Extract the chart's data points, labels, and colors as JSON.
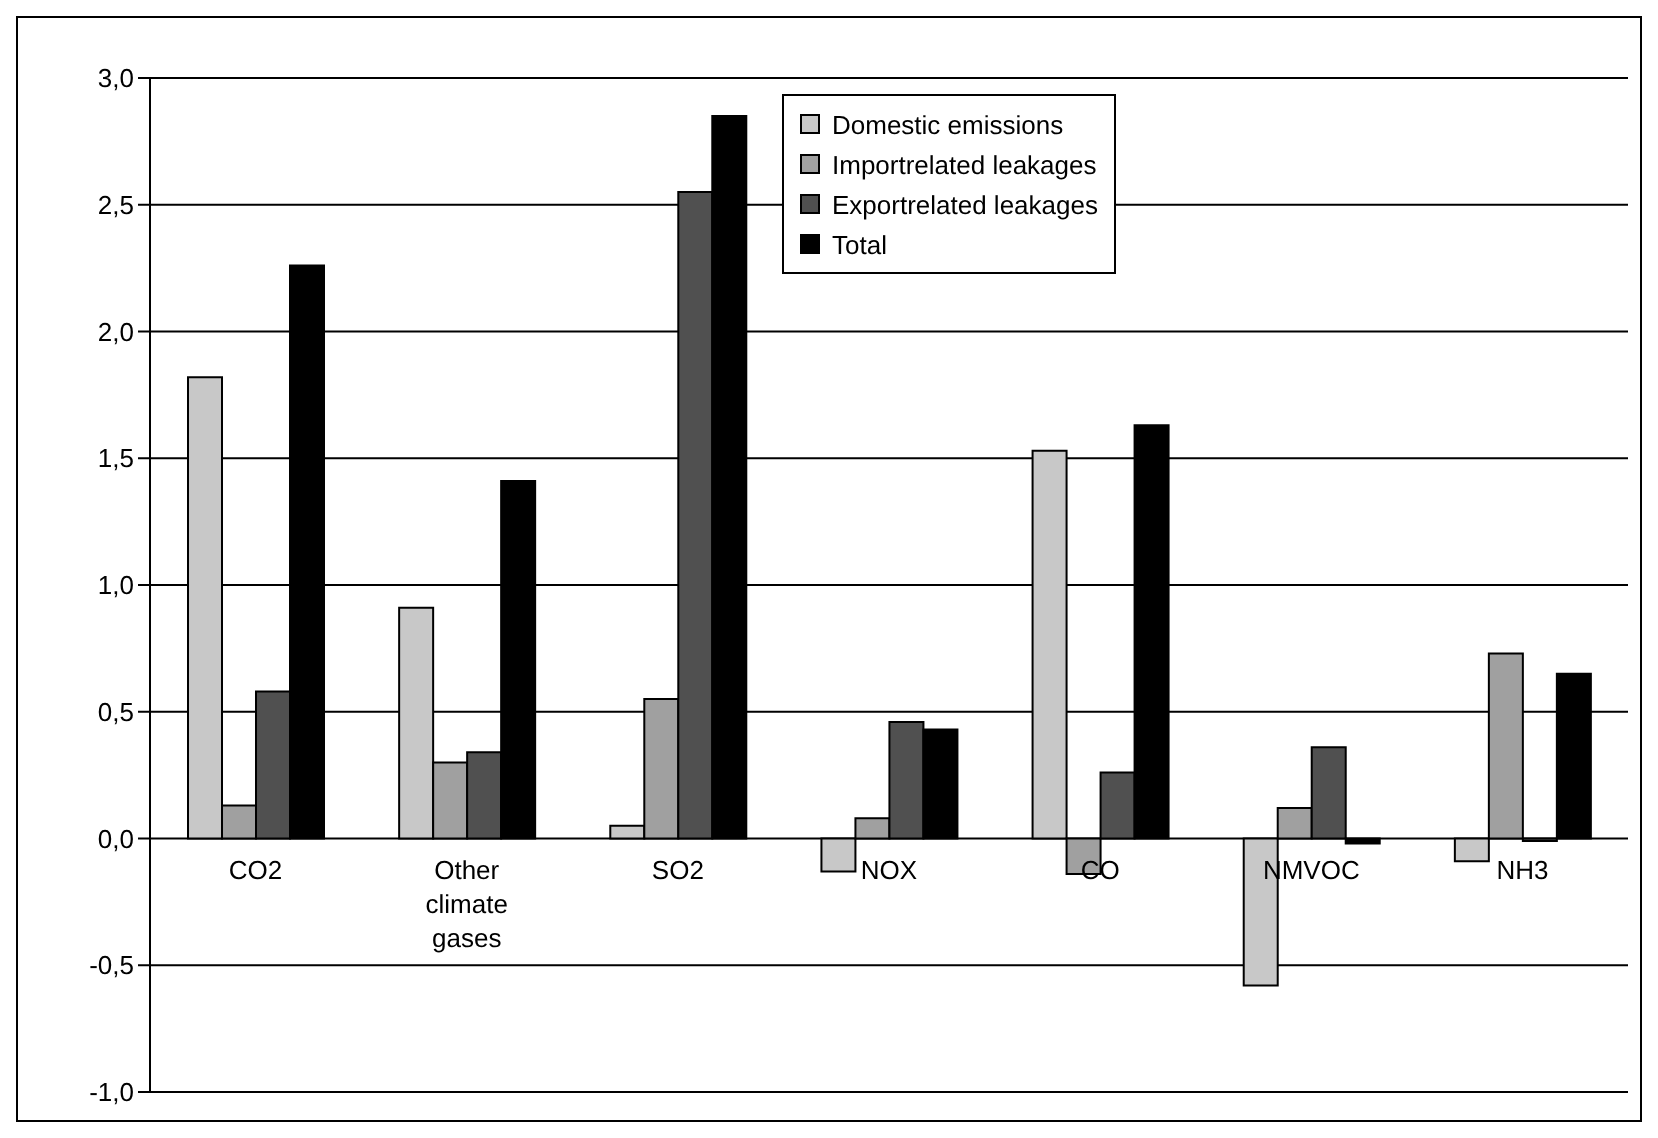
{
  "chart_data": {
    "type": "bar",
    "categories": [
      "CO2",
      "Other climate gases",
      "SO2",
      "NOX",
      "CO",
      "NMVOC",
      "NH3"
    ],
    "series": [
      {
        "name": "Domestic emissions",
        "color": "#c8c8c8",
        "values": [
          1.82,
          0.91,
          0.05,
          -0.13,
          1.53,
          -0.58,
          -0.09
        ]
      },
      {
        "name": "Importrelated leakages",
        "color": "#a0a0a0",
        "values": [
          0.13,
          0.3,
          0.55,
          0.08,
          -0.14,
          0.12,
          0.73
        ]
      },
      {
        "name": "Exportrelated leakages",
        "color": "#505050",
        "values": [
          0.58,
          0.34,
          2.55,
          0.46,
          0.26,
          0.36,
          -0.01
        ]
      },
      {
        "name": "Total",
        "color": "#000000",
        "values": [
          2.26,
          1.41,
          2.85,
          0.43,
          1.63,
          -0.02,
          0.65
        ]
      }
    ],
    "ylim": [
      -1,
      3
    ],
    "yticks": [
      {
        "value": -1,
        "label": "-1,0"
      },
      {
        "value": -0.5,
        "label": "-0,5"
      },
      {
        "value": 0,
        "label": "0,0"
      },
      {
        "value": 0.5,
        "label": "0,5"
      },
      {
        "value": 1,
        "label": "1,0"
      },
      {
        "value": 1.5,
        "label": "1,5"
      },
      {
        "value": 2,
        "label": "2,0"
      },
      {
        "value": 2.5,
        "label": "2,5"
      },
      {
        "value": 3,
        "label": "3,0"
      }
    ],
    "grid": "y",
    "legend": "top"
  }
}
